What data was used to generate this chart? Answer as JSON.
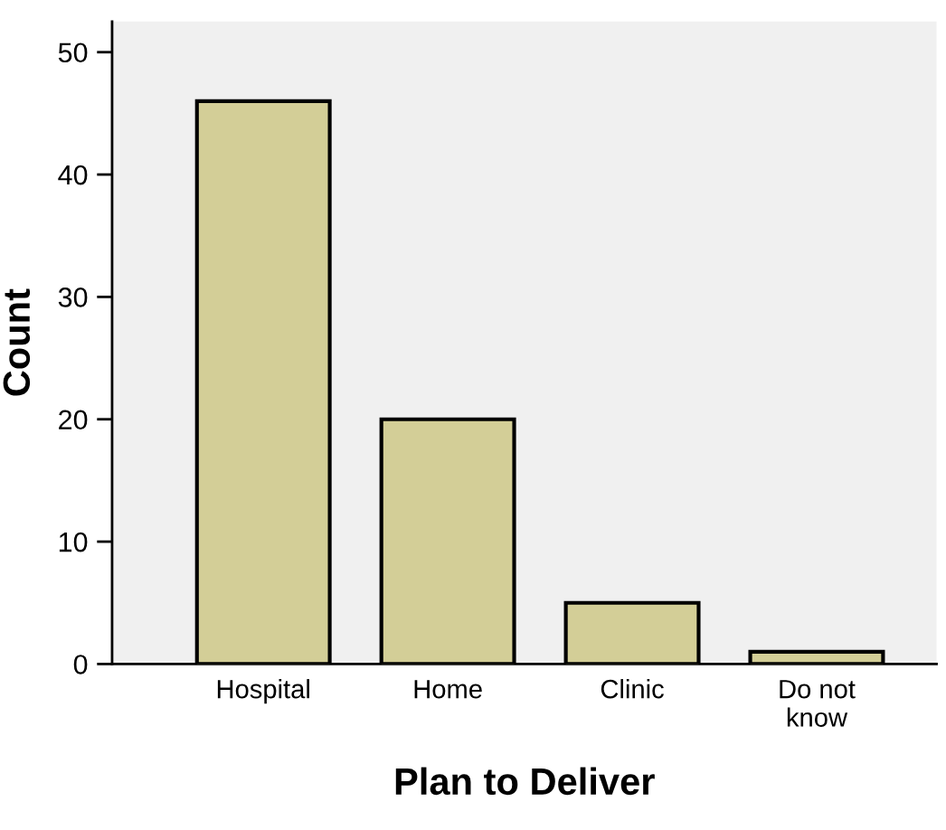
{
  "chart_data": {
    "type": "bar",
    "xlabel": "Plan to Deliver",
    "ylabel": "Count",
    "categories": [
      "Hospital",
      "Home",
      "Clinic",
      "Do not\nknow"
    ],
    "values": [
      46,
      20,
      5,
      1
    ],
    "color": "#d3ce97",
    "ylim": [
      0,
      52.5
    ],
    "yticks": [
      0,
      10,
      20,
      30,
      40,
      50
    ],
    "grid": false
  }
}
